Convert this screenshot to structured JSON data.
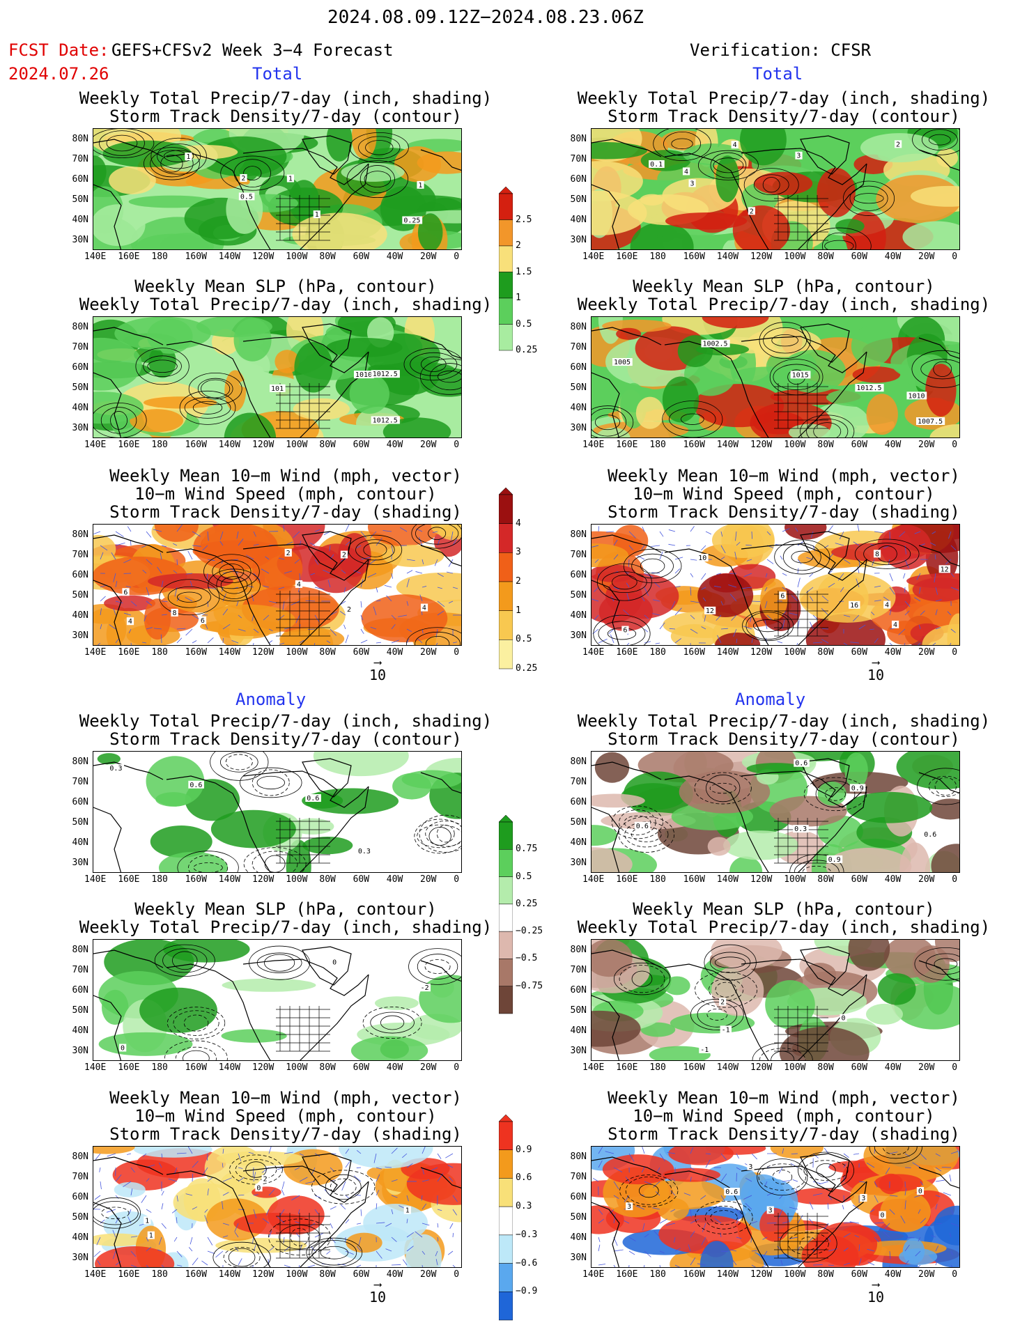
{
  "header": {
    "date_range": "2024.08.09.12Z−2024.08.23.06Z",
    "fcst_date_label": "FCST Date:",
    "fcst_date_value": "2024.07.26",
    "model_title": "GEFS+CFSv2 Week 3−4 Forecast",
    "verification": "Verification: CFSR"
  },
  "sections": {
    "total": "Total",
    "anomaly": "Anomaly"
  },
  "axes": {
    "lat_labels": [
      "80N",
      "70N",
      "60N",
      "50N",
      "40N",
      "30N"
    ],
    "lon_labels": [
      "140E",
      "160E",
      "180",
      "160W",
      "140W",
      "120W",
      "100W",
      "80W",
      "60W",
      "40W",
      "20W",
      "0"
    ]
  },
  "panel_titles": {
    "precip_storm": [
      "Weekly Total Precip/7-day (inch, shading)",
      "Storm Track Density/7-day (contour)"
    ],
    "slp_precip": [
      "Weekly Mean SLP (hPa, contour)",
      "Weekly Total Precip/7-day (inch, shading)"
    ],
    "wind": [
      "Weekly Mean 10−m Wind (mph, vector)",
      "10−m Wind Speed (mph, contour)",
      "Storm Track Density/7-day (shading)"
    ]
  },
  "vector_ref": "10",
  "colorbars": {
    "precip_total": {
      "labels": [
        "2.5",
        "2",
        "1.5",
        "1",
        "0.5",
        "0.25"
      ],
      "colors": [
        "#d42010",
        "#f2962a",
        "#f8e07a",
        "#1e9c1e",
        "#5ccf5c",
        "#a8eca0"
      ]
    },
    "storm_total": {
      "labels": [
        "4",
        "3",
        "2",
        "1",
        "0.5",
        "0.25"
      ],
      "colors": [
        "#9b1010",
        "#d42828",
        "#f06018",
        "#f39a1c",
        "#f8c850",
        "#fbf0a0"
      ]
    },
    "precip_anom": {
      "labels": [
        "0.75",
        "0.5",
        "0.25",
        "−0.25",
        "−0.5",
        "−0.75"
      ],
      "colors": [
        "#1e9c1e",
        "#5ccf5c",
        "#b4ecac",
        "#ffffff",
        "#ddb8ae",
        "#a87868",
        "#6e4538"
      ]
    },
    "storm_anom": {
      "labels": [
        "0.9",
        "0.6",
        "0.3",
        "−0.3",
        "−0.6",
        "−0.9"
      ],
      "colors": [
        "#ee3320",
        "#f39a1c",
        "#f8e078",
        "#ffffff",
        "#bde8f8",
        "#5aa8ee",
        "#1f66d8"
      ]
    }
  },
  "map_labels": {
    "fc_precip_storm": [
      "1",
      "1",
      "0.5",
      "1",
      "2",
      "0.25",
      "1"
    ],
    "fc_slp": [
      "1010",
      "1012.5",
      "1012.5",
      "101"
    ],
    "fc_wind": [
      "2",
      "2",
      "2",
      "4",
      "4",
      "6",
      "4",
      "8",
      "6"
    ],
    "vr_precip_storm": [
      "3",
      "4",
      "2",
      "0.1",
      "2",
      "4",
      "3"
    ],
    "vr_slp": [
      "1002.5",
      "1007.5",
      "1005",
      "1010",
      "1012.5",
      "1015"
    ],
    "vr_wind": [
      "4",
      "6",
      "10",
      "12",
      "12",
      "16",
      "6",
      "8",
      "4"
    ],
    "fc_anom_precip": [
      "0.6",
      "0.3",
      "0.3",
      "0.6"
    ],
    "fc_anom_slp": [
      "0",
      "-2",
      "0"
    ],
    "fc_anom_wind": [
      "0",
      "1",
      "1",
      "2",
      "1"
    ],
    "vr_anom_precip": [
      "0.9",
      "0.3",
      "0.6",
      "0.6",
      "0.9",
      "0.6"
    ],
    "vr_anom_slp": [
      "-1",
      "0",
      "2",
      "-1"
    ],
    "vr_anom_wind": [
      "0",
      "3",
      "3",
      "0",
      "3",
      "3",
      "0.6"
    ]
  }
}
